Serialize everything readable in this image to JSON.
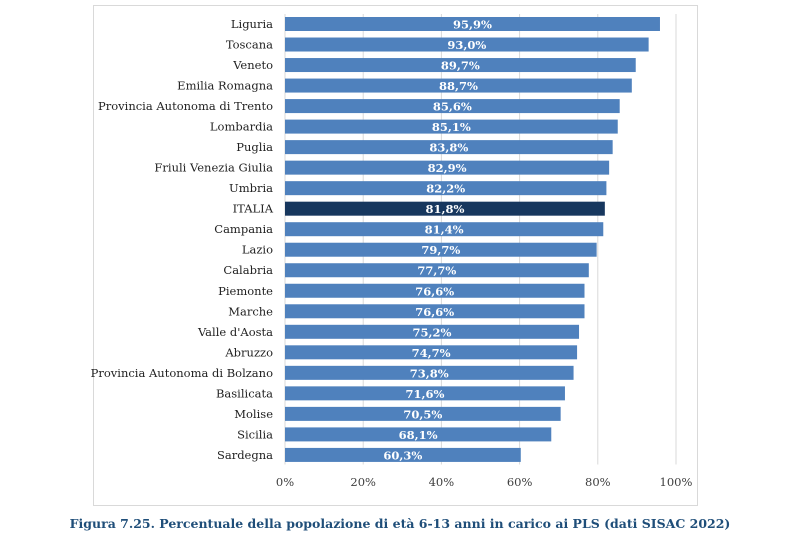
{
  "chart_data": {
    "type": "bar",
    "orientation": "horizontal",
    "categories": [
      "Liguria",
      "Toscana",
      "Veneto",
      "Emilia Romagna",
      "Provincia Autonoma di Trento",
      "Lombardia",
      "Puglia",
      "Friuli Venezia Giulia",
      "Umbria",
      "ITALIA",
      "Campania",
      "Lazio",
      "Calabria",
      "Piemonte",
      "Marche",
      "Valle d'Aosta",
      "Abruzzo",
      "Provincia Autonoma di Bolzano",
      "Basilicata",
      "Molise",
      "Sicilia",
      "Sardegna"
    ],
    "values": [
      95.9,
      93.0,
      89.7,
      88.7,
      85.6,
      85.1,
      83.8,
      82.9,
      82.2,
      81.8,
      81.4,
      79.7,
      77.7,
      76.6,
      76.6,
      75.2,
      74.7,
      73.8,
      71.6,
      70.5,
      68.1,
      60.3
    ],
    "data_labels": [
      "95,9%",
      "93,0%",
      "89,7%",
      "88,7%",
      "85,6%",
      "85,1%",
      "83,8%",
      "82,9%",
      "82,2%",
      "81,8%",
      "81,4%",
      "79,7%",
      "77,7%",
      "76,6%",
      "76,6%",
      "75,2%",
      "74,7%",
      "73,8%",
      "71,6%",
      "70,5%",
      "68,1%",
      "60,3%"
    ],
    "highlight_category": "ITALIA",
    "xlim": [
      0,
      100
    ],
    "x_ticks": [
      "0%",
      "20%",
      "40%",
      "60%",
      "80%",
      "100%"
    ],
    "grid": true,
    "colors": {
      "bar": "#4f81bd",
      "highlight": "#17375e",
      "grid": "#d9d9d9"
    },
    "title": "",
    "xlabel": "",
    "ylabel": ""
  },
  "caption": "Figura 7.25. Percentuale della popolazione di età 6-13 anni in carico ai PLS (dati SISAC 2022)"
}
